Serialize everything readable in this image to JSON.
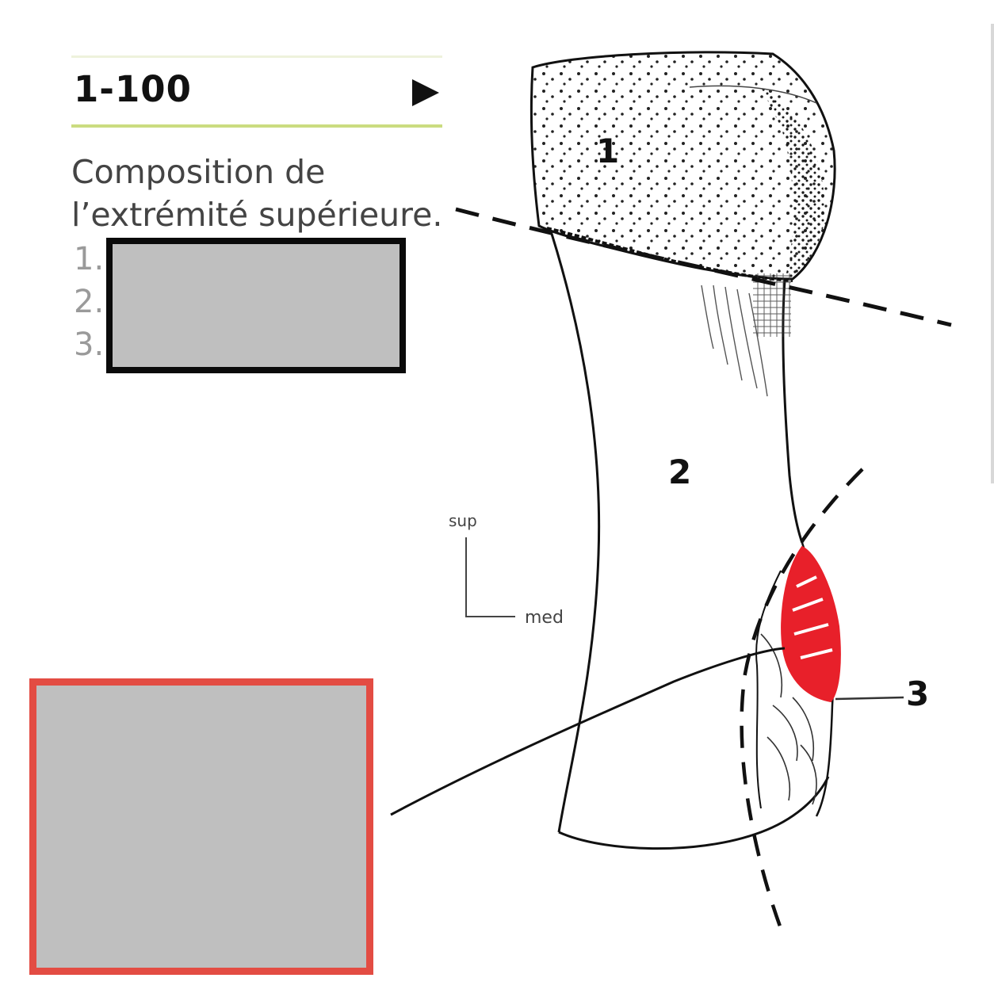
{
  "figure": {
    "number": "1-100",
    "caption_line1": "Composition de",
    "caption_line2": "l’extrémité supérieure.",
    "list_numbers": [
      "1.",
      "2.",
      "3."
    ]
  },
  "diagram": {
    "labels": {
      "part1": "1",
      "part2": "2",
      "part3": "3"
    },
    "orientation": {
      "sup": "sup",
      "med": "med"
    }
  },
  "colors": {
    "redaction_fill": "#bfbfbf",
    "legend_redaction_border": "#0a0a0a",
    "answer_redaction_border": "#e34c43",
    "highlight_red": "#e8202a",
    "accent_rule": "#cbdc80"
  }
}
